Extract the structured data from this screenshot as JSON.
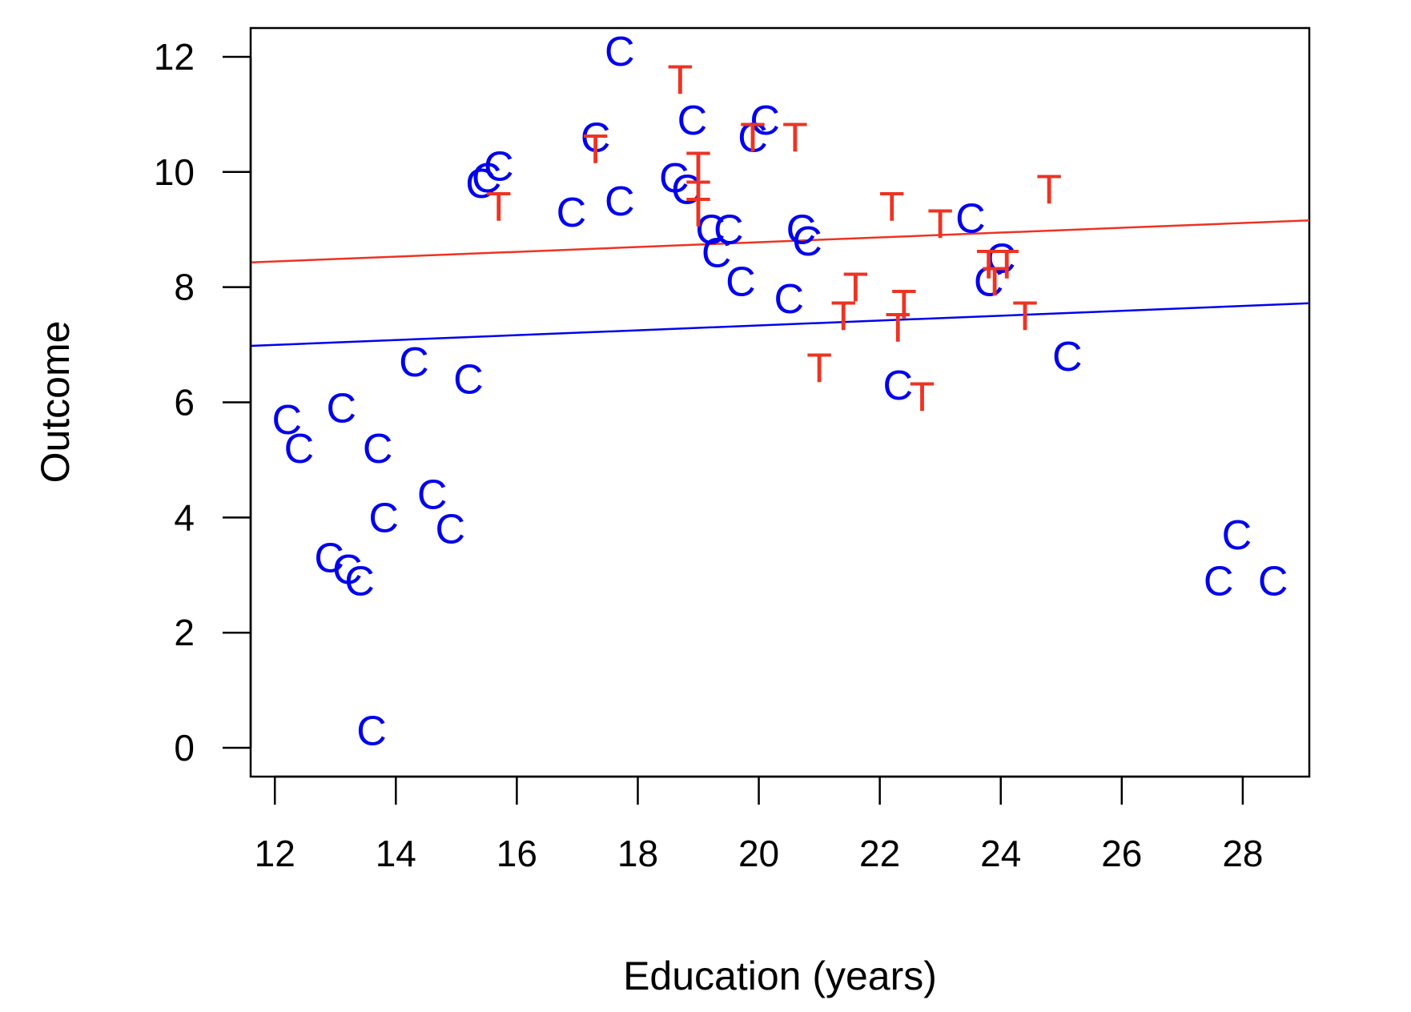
{
  "chart_data": {
    "type": "scatter",
    "title": "",
    "xlabel": "Education (years)",
    "ylabel": "Outcome",
    "xlim": [
      11.6,
      29.1
    ],
    "ylim": [
      -0.5,
      12.5
    ],
    "xticks": [
      12,
      14,
      16,
      18,
      20,
      22,
      24,
      26,
      28
    ],
    "yticks": [
      0,
      2,
      4,
      6,
      8,
      10,
      12
    ],
    "grid": false,
    "legend": "none",
    "series": [
      {
        "marker": "C",
        "color": "#0000ee",
        "points": [
          [
            12.2,
            5.7
          ],
          [
            12.4,
            5.2
          ],
          [
            13.1,
            5.9
          ],
          [
            13.7,
            5.2
          ],
          [
            12.9,
            3.3
          ],
          [
            13.2,
            3.1
          ],
          [
            13.4,
            2.9
          ],
          [
            13.8,
            4.0
          ],
          [
            13.6,
            0.3
          ],
          [
            14.3,
            6.7
          ],
          [
            14.6,
            4.4
          ],
          [
            14.9,
            3.8
          ],
          [
            15.2,
            6.4
          ],
          [
            15.4,
            9.8
          ],
          [
            15.5,
            9.9
          ],
          [
            15.7,
            10.1
          ],
          [
            16.9,
            9.3
          ],
          [
            17.3,
            10.6
          ],
          [
            17.7,
            9.5
          ],
          [
            17.7,
            12.1
          ],
          [
            18.6,
            9.9
          ],
          [
            18.8,
            9.7
          ],
          [
            18.9,
            10.9
          ],
          [
            19.2,
            9.0
          ],
          [
            19.3,
            8.6
          ],
          [
            19.5,
            9.0
          ],
          [
            19.7,
            8.1
          ],
          [
            19.9,
            10.6
          ],
          [
            20.1,
            10.9
          ],
          [
            20.5,
            7.8
          ],
          [
            20.7,
            9.0
          ],
          [
            20.8,
            8.8
          ],
          [
            22.3,
            6.3
          ],
          [
            23.5,
            9.2
          ],
          [
            23.8,
            8.1
          ],
          [
            24.0,
            8.5
          ],
          [
            25.1,
            6.8
          ],
          [
            27.6,
            2.9
          ],
          [
            27.9,
            3.7
          ],
          [
            28.5,
            2.9
          ]
        ]
      },
      {
        "marker": "T",
        "color": "#ee3322",
        "points": [
          [
            15.7,
            9.4
          ],
          [
            17.3,
            10.4
          ],
          [
            18.7,
            11.6
          ],
          [
            19.0,
            10.1
          ],
          [
            19.0,
            9.6
          ],
          [
            19.0,
            9.3
          ],
          [
            19.9,
            10.6
          ],
          [
            20.6,
            10.6
          ],
          [
            21.0,
            6.6
          ],
          [
            21.4,
            7.5
          ],
          [
            21.6,
            8.0
          ],
          [
            22.2,
            9.4
          ],
          [
            22.3,
            7.3
          ],
          [
            22.4,
            7.7
          ],
          [
            22.7,
            6.1
          ],
          [
            23.0,
            9.1
          ],
          [
            23.8,
            8.4
          ],
          [
            23.9,
            8.1
          ],
          [
            24.1,
            8.4
          ],
          [
            24.4,
            7.5
          ],
          [
            24.8,
            9.7
          ]
        ]
      }
    ],
    "fit_lines": [
      {
        "color": "#ee3322",
        "from": [
          11.6,
          8.43
        ],
        "to": [
          29.1,
          9.16
        ]
      },
      {
        "color": "#0000ee",
        "from": [
          11.6,
          6.98
        ],
        "to": [
          29.1,
          7.72
        ]
      }
    ]
  }
}
